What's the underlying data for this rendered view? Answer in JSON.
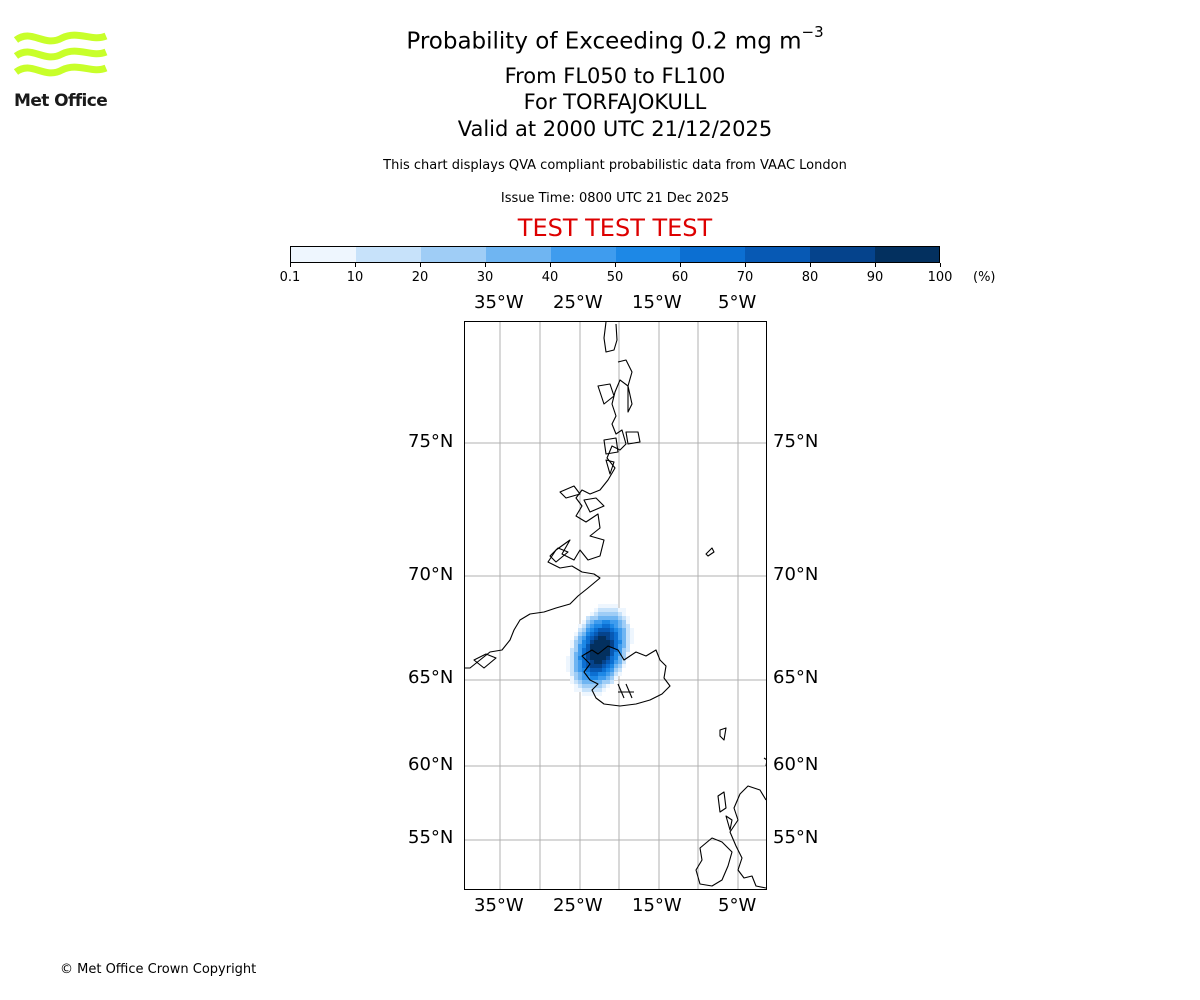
{
  "logo": {
    "text": "Met Office",
    "wave_color": "#c8ff2a",
    "text_color": "#1a1a1a"
  },
  "titles": {
    "main_prefix": "Probability of Exceeding 0.2 mg m",
    "main_exponent": "−3",
    "levels": "From FL050 to FL100",
    "volcano": "For TORFAJOKULL",
    "valid": "Valid at 2000 UTC 21/12/2025"
  },
  "subtitles": {
    "description": "This chart displays QVA compliant probabilistic data from VAAC London",
    "issue_time": "Issue Time: 0800 UTC 21 Dec 2025"
  },
  "banner": {
    "text": "TEST TEST TEST",
    "color": "#dd0000"
  },
  "colorbar": {
    "ticks": [
      "0.1",
      "10",
      "20",
      "30",
      "40",
      "50",
      "60",
      "70",
      "80",
      "90",
      "100"
    ],
    "colors": [
      "#eef6fe",
      "#c7e2fa",
      "#9fcdf6",
      "#6fb5f2",
      "#3f9cee",
      "#1d88e6",
      "#0c6fd2",
      "#0759b4",
      "#05438c",
      "#03305f"
    ],
    "unit": "(%)"
  },
  "map": {
    "longitude_labels": [
      "35°W",
      "25°W",
      "15°W",
      "5°W"
    ],
    "latitude_labels": [
      "75°N",
      "70°N",
      "65°N",
      "60°N",
      "55°N"
    ],
    "gridline_color": "#b0b0b0",
    "coastline_color": "#000000"
  },
  "footer": {
    "copyright": "© Met Office Crown Copyright"
  }
}
